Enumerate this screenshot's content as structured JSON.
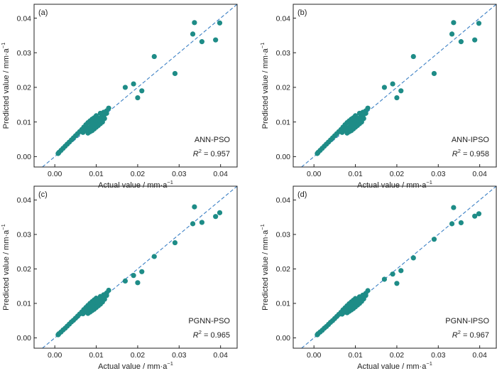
{
  "chart_data": [
    {
      "type": "scatter",
      "panel_label": "(a)",
      "model": "ANN-PSO",
      "r2_label": "R",
      "r2_sup": "2",
      "r2_value": " = 0.957",
      "xlabel": "Actual value / mm·a",
      "xlabel_sup": "−1",
      "ylabel": "Predicted value / mm·a",
      "ylabel_sup": "−1",
      "xlim": [
        -0.005,
        0.044
      ],
      "ylim": [
        -0.003,
        0.044
      ],
      "xticks": [
        "0.00",
        "0.01",
        "0.02",
        "0.03",
        "0.04"
      ],
      "yticks": [
        "0.00",
        "0.01",
        "0.02",
        "0.03",
        "0.04"
      ],
      "reference_line": "y = x",
      "points": [
        [
          0.0337,
          0.0387
        ],
        [
          0.0398,
          0.0386
        ],
        [
          0.0333,
          0.0354
        ],
        [
          0.0388,
          0.0337
        ],
        [
          0.0355,
          0.0332
        ],
        [
          0.024,
          0.0289
        ],
        [
          0.029,
          0.024
        ],
        [
          0.017,
          0.02
        ],
        [
          0.019,
          0.021
        ],
        [
          0.021,
          0.019
        ],
        [
          0.02,
          0.017
        ],
        [
          0.013,
          0.014
        ],
        [
          0.0125,
          0.0132
        ],
        [
          0.0118,
          0.0128
        ],
        [
          0.011,
          0.0125
        ],
        [
          0.01,
          0.0118
        ],
        [
          0.0095,
          0.0112
        ],
        [
          0.009,
          0.0108
        ],
        [
          0.0085,
          0.0103
        ],
        [
          0.008,
          0.0098
        ],
        [
          0.0075,
          0.0092
        ],
        [
          0.007,
          0.0085
        ],
        [
          0.0065,
          0.0078
        ],
        [
          0.006,
          0.0072
        ],
        [
          0.0055,
          0.0066
        ],
        [
          0.005,
          0.006
        ],
        [
          0.0045,
          0.0054
        ],
        [
          0.004,
          0.0048
        ],
        [
          0.0035,
          0.0042
        ],
        [
          0.003,
          0.0036
        ],
        [
          0.0025,
          0.003
        ],
        [
          0.002,
          0.0024
        ],
        [
          0.0015,
          0.0018
        ],
        [
          0.001,
          0.0012
        ],
        [
          0.0008,
          0.0009
        ],
        [
          0.012,
          0.011
        ],
        [
          0.0115,
          0.01
        ],
        [
          0.011,
          0.0095
        ],
        [
          0.0105,
          0.009
        ],
        [
          0.01,
          0.0085
        ],
        [
          0.0095,
          0.008
        ],
        [
          0.009,
          0.0075
        ],
        [
          0.0085,
          0.0072
        ],
        [
          0.008,
          0.0068
        ],
        [
          0.01,
          0.01
        ],
        [
          0.0105,
          0.0105
        ],
        [
          0.0095,
          0.0095
        ],
        [
          0.009,
          0.009
        ],
        [
          0.0085,
          0.0085
        ],
        [
          0.011,
          0.0112
        ],
        [
          0.0115,
          0.0115
        ],
        [
          0.012,
          0.0122
        ],
        [
          0.0125,
          0.0125
        ],
        [
          0.0088,
          0.0097
        ],
        [
          0.0092,
          0.0101
        ],
        [
          0.0098,
          0.0106
        ],
        [
          0.0102,
          0.011
        ],
        [
          0.0078,
          0.0082
        ],
        [
          0.0072,
          0.0076
        ],
        [
          0.0068,
          0.007
        ]
      ]
    },
    {
      "type": "scatter",
      "panel_label": "(b)",
      "model": "ANN-IPSO",
      "r2_label": "R",
      "r2_sup": "2",
      "r2_value": " = 0.958",
      "xlabel": "Actual value / mm·a",
      "xlabel_sup": "−1",
      "ylabel": "Predicted value / mm·a",
      "ylabel_sup": "−1",
      "xlim": [
        -0.005,
        0.044
      ],
      "ylim": [
        -0.003,
        0.044
      ],
      "xticks": [
        "0.00",
        "0.01",
        "0.02",
        "0.03",
        "0.04"
      ],
      "yticks": [
        "0.00",
        "0.01",
        "0.02",
        "0.03",
        "0.04"
      ],
      "reference_line": "y = x",
      "points": [
        [
          0.0337,
          0.0387
        ],
        [
          0.0398,
          0.0385
        ],
        [
          0.0333,
          0.0354
        ],
        [
          0.0388,
          0.0337
        ],
        [
          0.0355,
          0.0332
        ],
        [
          0.024,
          0.0289
        ],
        [
          0.029,
          0.024
        ],
        [
          0.017,
          0.02
        ],
        [
          0.019,
          0.021
        ],
        [
          0.021,
          0.019
        ],
        [
          0.02,
          0.017
        ],
        [
          0.013,
          0.014
        ],
        [
          0.0125,
          0.0132
        ],
        [
          0.0118,
          0.0128
        ],
        [
          0.011,
          0.0125
        ],
        [
          0.01,
          0.0118
        ],
        [
          0.0095,
          0.0112
        ],
        [
          0.009,
          0.0108
        ],
        [
          0.0085,
          0.0103
        ],
        [
          0.008,
          0.0098
        ],
        [
          0.0075,
          0.0092
        ],
        [
          0.007,
          0.0085
        ],
        [
          0.0065,
          0.0078
        ],
        [
          0.006,
          0.0072
        ],
        [
          0.0055,
          0.0066
        ],
        [
          0.005,
          0.006
        ],
        [
          0.0045,
          0.0054
        ],
        [
          0.004,
          0.0048
        ],
        [
          0.0035,
          0.0042
        ],
        [
          0.003,
          0.0036
        ],
        [
          0.0025,
          0.003
        ],
        [
          0.002,
          0.0024
        ],
        [
          0.0015,
          0.0018
        ],
        [
          0.001,
          0.0012
        ],
        [
          0.0008,
          0.0009
        ],
        [
          0.012,
          0.011
        ],
        [
          0.0115,
          0.01
        ],
        [
          0.011,
          0.0095
        ],
        [
          0.0105,
          0.009
        ],
        [
          0.01,
          0.0085
        ],
        [
          0.0095,
          0.008
        ],
        [
          0.009,
          0.0075
        ],
        [
          0.0085,
          0.0072
        ],
        [
          0.008,
          0.0068
        ],
        [
          0.01,
          0.01
        ],
        [
          0.0105,
          0.0105
        ],
        [
          0.0095,
          0.0095
        ],
        [
          0.009,
          0.009
        ],
        [
          0.0085,
          0.0085
        ],
        [
          0.011,
          0.0112
        ],
        [
          0.0115,
          0.0115
        ],
        [
          0.012,
          0.0122
        ],
        [
          0.0125,
          0.0125
        ],
        [
          0.0088,
          0.0097
        ],
        [
          0.0092,
          0.0101
        ],
        [
          0.0098,
          0.0106
        ],
        [
          0.0102,
          0.011
        ],
        [
          0.0078,
          0.0082
        ],
        [
          0.0072,
          0.0076
        ],
        [
          0.0068,
          0.007
        ]
      ]
    },
    {
      "type": "scatter",
      "panel_label": "(c)",
      "model": "PGNN-PSO",
      "r2_label": "R",
      "r2_sup": "2",
      "r2_value": " = 0.965",
      "xlabel": "Actual value / mm·a",
      "xlabel_sup": "−1",
      "ylabel": "Predicted value / mm·a",
      "ylabel_sup": "−1",
      "xlim": [
        -0.005,
        0.044
      ],
      "ylim": [
        -0.003,
        0.044
      ],
      "xticks": [
        "0.00",
        "0.01",
        "0.02",
        "0.03",
        "0.04"
      ],
      "yticks": [
        "0.00",
        "0.01",
        "0.02",
        "0.03",
        "0.04"
      ],
      "reference_line": "y = x",
      "points": [
        [
          0.0337,
          0.038
        ],
        [
          0.0398,
          0.0363
        ],
        [
          0.0333,
          0.0331
        ],
        [
          0.0388,
          0.0352
        ],
        [
          0.0355,
          0.0335
        ],
        [
          0.029,
          0.0276
        ],
        [
          0.024,
          0.0236
        ],
        [
          0.017,
          0.0165
        ],
        [
          0.019,
          0.0181
        ],
        [
          0.021,
          0.0192
        ],
        [
          0.02,
          0.016
        ],
        [
          0.013,
          0.0138
        ],
        [
          0.0125,
          0.013
        ],
        [
          0.0118,
          0.0125
        ],
        [
          0.011,
          0.012
        ],
        [
          0.01,
          0.0115
        ],
        [
          0.0095,
          0.011
        ],
        [
          0.009,
          0.0105
        ],
        [
          0.0085,
          0.01
        ],
        [
          0.008,
          0.0094
        ],
        [
          0.0075,
          0.0088
        ],
        [
          0.007,
          0.0082
        ],
        [
          0.0065,
          0.0075
        ],
        [
          0.006,
          0.0069
        ],
        [
          0.0055,
          0.0063
        ],
        [
          0.005,
          0.0057
        ],
        [
          0.0045,
          0.0051
        ],
        [
          0.004,
          0.0046
        ],
        [
          0.0035,
          0.004
        ],
        [
          0.003,
          0.0034
        ],
        [
          0.0025,
          0.0028
        ],
        [
          0.002,
          0.0023
        ],
        [
          0.0015,
          0.0017
        ],
        [
          0.001,
          0.0012
        ],
        [
          0.0008,
          0.0009
        ],
        [
          0.012,
          0.0112
        ],
        [
          0.0115,
          0.0104
        ],
        [
          0.011,
          0.0098
        ],
        [
          0.0105,
          0.0093
        ],
        [
          0.01,
          0.0088
        ],
        [
          0.0095,
          0.0083
        ],
        [
          0.009,
          0.0079
        ],
        [
          0.0085,
          0.0075
        ],
        [
          0.008,
          0.0071
        ],
        [
          0.01,
          0.01
        ],
        [
          0.0105,
          0.0105
        ],
        [
          0.0095,
          0.0095
        ],
        [
          0.009,
          0.009
        ],
        [
          0.0085,
          0.0085
        ],
        [
          0.011,
          0.011
        ],
        [
          0.0115,
          0.0114
        ],
        [
          0.012,
          0.0119
        ],
        [
          0.0125,
          0.0123
        ],
        [
          0.0088,
          0.0096
        ],
        [
          0.0092,
          0.0099
        ],
        [
          0.0098,
          0.0104
        ],
        [
          0.0102,
          0.0108
        ],
        [
          0.0078,
          0.0081
        ],
        [
          0.0072,
          0.0075
        ],
        [
          0.0068,
          0.007
        ]
      ]
    },
    {
      "type": "scatter",
      "panel_label": "(d)",
      "model": "PGNN-IPSO",
      "r2_label": "R",
      "r2_sup": "2",
      "r2_value": " = 0.967",
      "xlabel": "Actual value / mm·a",
      "xlabel_sup": "−1",
      "ylabel": "Predicted value / mm·a",
      "ylabel_sup": "−1",
      "xlim": [
        -0.005,
        0.044
      ],
      "ylim": [
        -0.003,
        0.044
      ],
      "xticks": [
        "0.00",
        "0.01",
        "0.02",
        "0.03",
        "0.04"
      ],
      "yticks": [
        "0.00",
        "0.01",
        "0.02",
        "0.03",
        "0.04"
      ],
      "reference_line": "y = x",
      "points": [
        [
          0.0337,
          0.0378
        ],
        [
          0.0398,
          0.036
        ],
        [
          0.0333,
          0.0331
        ],
        [
          0.0388,
          0.0353
        ],
        [
          0.0355,
          0.0334
        ],
        [
          0.029,
          0.0286
        ],
        [
          0.024,
          0.0232
        ],
        [
          0.017,
          0.017
        ],
        [
          0.019,
          0.0185
        ],
        [
          0.021,
          0.0195
        ],
        [
          0.02,
          0.0158
        ],
        [
          0.013,
          0.0137
        ],
        [
          0.0125,
          0.0129
        ],
        [
          0.0118,
          0.0124
        ],
        [
          0.011,
          0.0119
        ],
        [
          0.01,
          0.0114
        ],
        [
          0.0095,
          0.0109
        ],
        [
          0.009,
          0.0104
        ],
        [
          0.0085,
          0.0099
        ],
        [
          0.008,
          0.0093
        ],
        [
          0.0075,
          0.0087
        ],
        [
          0.007,
          0.0081
        ],
        [
          0.0065,
          0.0074
        ],
        [
          0.006,
          0.0068
        ],
        [
          0.0055,
          0.0062
        ],
        [
          0.005,
          0.0056
        ],
        [
          0.0045,
          0.005
        ],
        [
          0.004,
          0.0045
        ],
        [
          0.0035,
          0.0039
        ],
        [
          0.003,
          0.0033
        ],
        [
          0.0025,
          0.0028
        ],
        [
          0.002,
          0.0022
        ],
        [
          0.0015,
          0.0017
        ],
        [
          0.001,
          0.0012
        ],
        [
          0.0008,
          0.0009
        ],
        [
          0.012,
          0.0113
        ],
        [
          0.0115,
          0.0106
        ],
        [
          0.011,
          0.01
        ],
        [
          0.0105,
          0.0095
        ],
        [
          0.01,
          0.009
        ],
        [
          0.0095,
          0.0085
        ],
        [
          0.009,
          0.0081
        ],
        [
          0.0085,
          0.0077
        ],
        [
          0.008,
          0.0073
        ],
        [
          0.01,
          0.01
        ],
        [
          0.0105,
          0.0105
        ],
        [
          0.0095,
          0.0095
        ],
        [
          0.009,
          0.009
        ],
        [
          0.0085,
          0.0085
        ],
        [
          0.011,
          0.011
        ],
        [
          0.0115,
          0.0114
        ],
        [
          0.012,
          0.0119
        ],
        [
          0.0125,
          0.0123
        ],
        [
          0.0088,
          0.0095
        ],
        [
          0.0092,
          0.0098
        ],
        [
          0.0098,
          0.0103
        ],
        [
          0.0102,
          0.0107
        ],
        [
          0.0078,
          0.008
        ],
        [
          0.0072,
          0.0074
        ],
        [
          0.0068,
          0.0069
        ]
      ]
    }
  ],
  "colors": {
    "marker": "#1e8c87",
    "reference_line": "#3a7fc4",
    "axis": "#222222"
  }
}
